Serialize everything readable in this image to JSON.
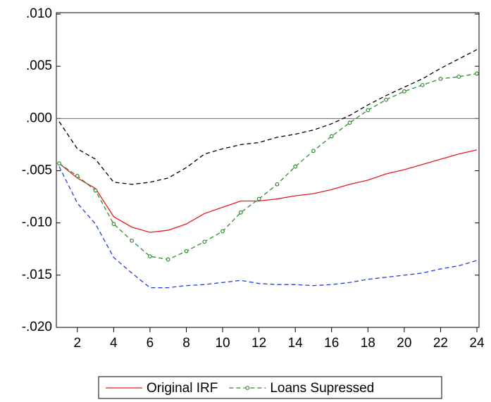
{
  "chart_data": {
    "type": "line",
    "x": [
      1,
      2,
      3,
      4,
      5,
      6,
      7,
      8,
      9,
      10,
      11,
      12,
      13,
      14,
      15,
      16,
      17,
      18,
      19,
      20,
      21,
      22,
      23,
      24
    ],
    "xlim": [
      1,
      24
    ],
    "xticks": [
      2,
      4,
      6,
      8,
      10,
      12,
      14,
      16,
      18,
      20,
      22,
      24
    ],
    "ylim": [
      -0.02,
      0.01
    ],
    "yticks": [
      {
        "value": 0.01,
        "label": ".010"
      },
      {
        "value": 0.005,
        "label": ".005"
      },
      {
        "value": 0,
        "label": ".000"
      },
      {
        "value": -0.005,
        "label": "-.005"
      },
      {
        "value": -0.01,
        "label": "-.010"
      },
      {
        "value": -0.015,
        "label": "-.015"
      },
      {
        "value": -0.02,
        "label": "-.020"
      }
    ],
    "zero_line": true,
    "legend": "bottom",
    "series": [
      {
        "name": "Original IRF",
        "color": "#e41a1c",
        "dash": false,
        "markers": false,
        "values": [
          -0.0043,
          -0.0057,
          -0.0067,
          -0.0094,
          -0.0104,
          -0.0109,
          -0.0107,
          -0.0101,
          -0.0091,
          -0.0085,
          -0.0079,
          -0.0079,
          -0.0077,
          -0.0074,
          -0.0072,
          -0.0068,
          -0.0063,
          -0.0059,
          -0.0053,
          -0.0049,
          -0.0044,
          -0.0039,
          -0.0034,
          -0.003
        ]
      },
      {
        "name": "Loans Supressed",
        "color": "#2e8b2e",
        "dash": true,
        "markers": true,
        "values": [
          -0.0043,
          -0.0055,
          -0.0069,
          -0.0101,
          -0.0117,
          -0.0132,
          -0.0135,
          -0.0127,
          -0.0118,
          -0.0108,
          -0.009,
          -0.0077,
          -0.0063,
          -0.0046,
          -0.0031,
          -0.0017,
          -0.0004,
          0.0008,
          0.0018,
          0.0026,
          0.0032,
          0.0038,
          0.004,
          0.0043
        ]
      },
      {
        "color": "#000000",
        "dash": true,
        "markers": false,
        "values": [
          -0.0003,
          -0.0029,
          -0.0039,
          -0.0061,
          -0.0063,
          -0.0061,
          -0.0057,
          -0.0047,
          -0.0034,
          -0.0029,
          -0.0025,
          -0.0023,
          -0.0018,
          -0.0015,
          -0.0011,
          -0.0005,
          0.0003,
          0.0013,
          0.0022,
          0.003,
          0.0038,
          0.0048,
          0.0057,
          0.0066
        ]
      },
      {
        "color": "#1f3fe0",
        "dash": true,
        "markers": false,
        "values": [
          -0.0046,
          -0.0081,
          -0.0101,
          -0.0133,
          -0.0148,
          -0.0162,
          -0.0162,
          -0.016,
          -0.0159,
          -0.0157,
          -0.0155,
          -0.0158,
          -0.0159,
          -0.0159,
          -0.016,
          -0.0159,
          -0.0157,
          -0.0154,
          -0.0152,
          -0.015,
          -0.0148,
          -0.0144,
          -0.0141,
          -0.0136
        ]
      }
    ]
  }
}
